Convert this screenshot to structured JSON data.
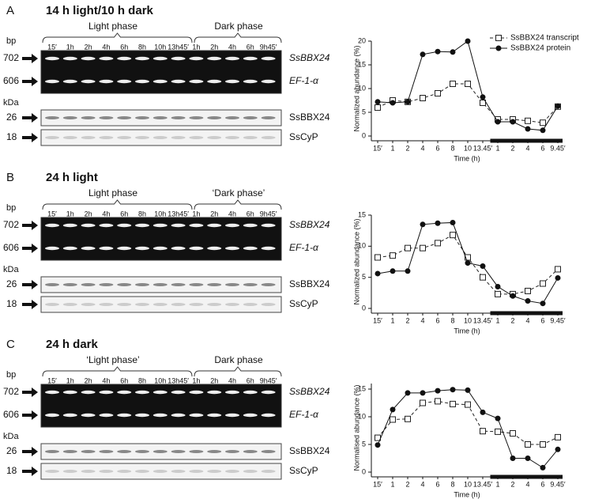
{
  "panels": [
    {
      "letter": "A",
      "title": "14 h light/10 h dark",
      "light": "Light phase",
      "dark": "Dark phase"
    },
    {
      "letter": "B",
      "title": "24 h light",
      "light": "Light phase",
      "dark": "‘Dark phase’"
    },
    {
      "letter": "C",
      "title": "24 h dark",
      "light": "‘Light phase’",
      "dark": "Dark phase"
    }
  ],
  "gel": {
    "bp_unit": "bp",
    "kda_unit": "kDa",
    "lanes": [
      "15′",
      "1h",
      "2h",
      "4h",
      "6h",
      "8h",
      "10h",
      "13h45′",
      "1h",
      "2h",
      "4h",
      "6h",
      "9h45′"
    ],
    "dna_sizes": [
      702,
      606
    ],
    "protein_sizes": [
      26,
      18
    ],
    "labels": [
      "SsBBX24",
      "EF-1-α",
      "SsBBX24",
      "SsCyP"
    ]
  },
  "chart_data": [
    {
      "type": "line",
      "categories": [
        "15′",
        "1",
        "2",
        "4",
        "6",
        "8",
        "10",
        "13.45′",
        "1",
        "2",
        "4",
        "6",
        "9.45′"
      ],
      "x_label": "Time (h)",
      "y_label": "Normalized abundance (%)",
      "ylim": [
        0,
        20
      ],
      "yticks": [
        0,
        5,
        10,
        15,
        20
      ],
      "legend": "upper right",
      "series": [
        {
          "name": "SsBBX24 transcript",
          "color": "#222",
          "line": "dashed",
          "marker": "square",
          "values": [
            6,
            7.5,
            7.2,
            8,
            9,
            11,
            11,
            7,
            3.5,
            3.5,
            3.2,
            2.8,
            6.2
          ]
        },
        {
          "name": "SsBBX24 protein",
          "color": "#111",
          "line": "solid",
          "marker": "circle",
          "values": [
            7.2,
            7,
            7.2,
            17.2,
            17.8,
            17.7,
            20,
            8.2,
            3,
            3,
            1.5,
            1.2,
            6.3
          ]
        }
      ]
    },
    {
      "type": "line",
      "categories": [
        "15′",
        "1",
        "2",
        "4",
        "6",
        "8",
        "10",
        "13.45′",
        "1",
        "2",
        "4",
        "6",
        "9.45′"
      ],
      "x_label": "Time (h)",
      "y_label": "Normalized abundance (%)",
      "ylim": [
        0,
        15
      ],
      "yticks": [
        0,
        5,
        10,
        15
      ],
      "series": [
        {
          "color": "#222",
          "line": "dashed",
          "marker": "square",
          "values": [
            8.2,
            8.5,
            9.7,
            9.7,
            10.5,
            11.8,
            8.2,
            5,
            2.3,
            2.3,
            2.8,
            4,
            6.3
          ]
        },
        {
          "color": "#111",
          "line": "solid",
          "marker": "circle",
          "values": [
            5.6,
            6,
            6,
            13.5,
            13.7,
            13.8,
            7.3,
            6.8,
            3.5,
            2,
            1.2,
            0.8,
            4.9
          ]
        }
      ]
    },
    {
      "type": "line",
      "categories": [
        "15′",
        "1",
        "2",
        "4",
        "6",
        "8",
        "10",
        "13.45′",
        "1",
        "2",
        "4",
        "6",
        "9.45′"
      ],
      "x_label": "Time (h)",
      "y_label": "Normalised abundance (%)",
      "ylim": [
        0,
        16
      ],
      "yticks": [
        0,
        5,
        10,
        15
      ],
      "series": [
        {
          "color": "#222",
          "line": "dashed",
          "marker": "square",
          "values": [
            6.2,
            9.5,
            9.6,
            12.5,
            12.8,
            12.3,
            12.2,
            7.4,
            7.3,
            7,
            5,
            5,
            6.3
          ]
        },
        {
          "color": "#111",
          "line": "solid",
          "marker": "circle",
          "values": [
            4.9,
            11.3,
            14.3,
            14.3,
            14.7,
            14.9,
            14.8,
            10.8,
            9.7,
            2.5,
            2.5,
            0.8,
            4.1
          ]
        }
      ]
    }
  ]
}
